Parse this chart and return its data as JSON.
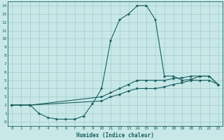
{
  "xlabel": "Humidex (Indice chaleur)",
  "ylabel": "",
  "bg_color": "#c8e8e8",
  "grid_color": "#a8cece",
  "line_color": "#1a6060",
  "xlim": [
    -0.5,
    23.5
  ],
  "ylim": [
    -0.5,
    14.5
  ],
  "xticks": [
    0,
    1,
    2,
    3,
    4,
    5,
    6,
    7,
    8,
    9,
    10,
    11,
    12,
    13,
    14,
    15,
    16,
    17,
    18,
    19,
    20,
    21,
    22,
    23
  ],
  "yticks": [
    0,
    1,
    2,
    3,
    4,
    5,
    6,
    7,
    8,
    9,
    10,
    11,
    12,
    13,
    14
  ],
  "line1_x": [
    0,
    1,
    2,
    3,
    4,
    5,
    6,
    7,
    8,
    9,
    10,
    11,
    12,
    13,
    14,
    15,
    16,
    17,
    18,
    19,
    20,
    21,
    22,
    23
  ],
  "line1_y": [
    2,
    2,
    2,
    1,
    0.5,
    0.3,
    0.3,
    0.3,
    0.7,
    2.2,
    4,
    9.8,
    12.3,
    13,
    14,
    14,
    12.3,
    5.5,
    5.5,
    5.0,
    5.1,
    5.5,
    5.5,
    4.5
  ],
  "line2_x": [
    0,
    2,
    10,
    11,
    12,
    13,
    14,
    15,
    16,
    17,
    18,
    19,
    20,
    21,
    22,
    23
  ],
  "line2_y": [
    2,
    2,
    3,
    3.5,
    4.0,
    4.5,
    5.0,
    5.0,
    5.0,
    5.0,
    5.2,
    5.3,
    5.5,
    5.5,
    5.5,
    4.5
  ],
  "line3_x": [
    0,
    2,
    10,
    11,
    12,
    13,
    14,
    15,
    16,
    17,
    18,
    19,
    20,
    21,
    22,
    23
  ],
  "line3_y": [
    2,
    2,
    2.5,
    3.0,
    3.3,
    3.7,
    4.0,
    4.0,
    4.0,
    4.2,
    4.5,
    4.7,
    5.0,
    5.0,
    5.0,
    4.5
  ]
}
